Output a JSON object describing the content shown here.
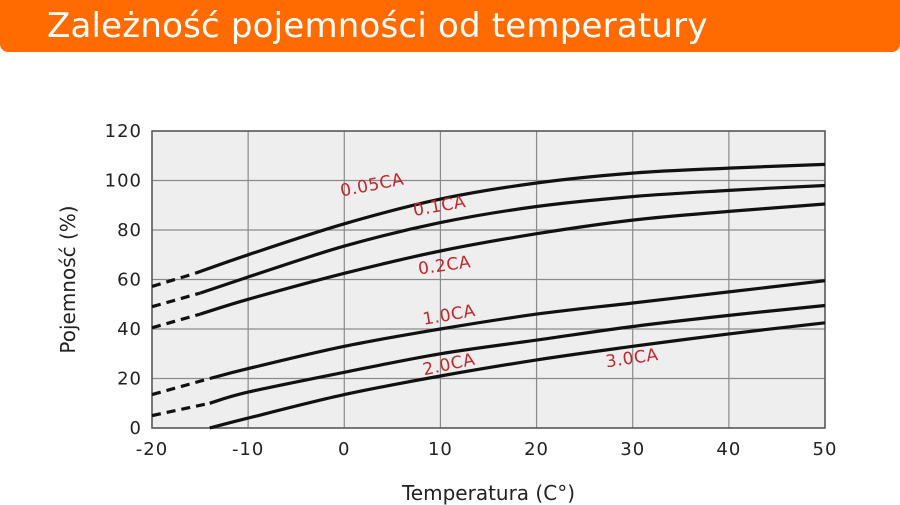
{
  "header": {
    "title": "Zależność pojemności od temperatury",
    "background_color": "#ff6b00"
  },
  "chart_data": {
    "type": "line",
    "xlabel": "Temperatura (C°)",
    "ylabel": "Pojemność (%)",
    "xlim": [
      -20,
      50
    ],
    "ylim": [
      0,
      120
    ],
    "xticks": [
      -20,
      -10,
      0,
      10,
      20,
      30,
      40,
      50
    ],
    "yticks": [
      0,
      20,
      40,
      60,
      80,
      100,
      120
    ],
    "grid": true,
    "plot_background": "#eeeeee",
    "line_color": "#111111",
    "label_color": "#c1272d",
    "series": [
      {
        "name": "0.05CA",
        "dashed_segment": [
          [
            -20,
            57.2
          ],
          [
            -15.5,
            62.5
          ]
        ],
        "x": [
          -15.5,
          -10,
          0,
          10,
          20,
          30,
          40,
          50
        ],
        "y": [
          62.5,
          70,
          82.5,
          92.5,
          99,
          103,
          105,
          106.5
        ]
      },
      {
        "name": "0.1CA",
        "dashed_segment": [
          [
            -20,
            49
          ],
          [
            -15,
            54.5
          ]
        ],
        "x": [
          -15,
          -10,
          0,
          10,
          20,
          30,
          40,
          50
        ],
        "y": [
          54.5,
          61,
          73.5,
          83,
          89.5,
          93.5,
          96,
          98
        ]
      },
      {
        "name": "0.2CA",
        "dashed_segment": [
          [
            -20,
            40.5
          ],
          [
            -15,
            46
          ]
        ],
        "x": [
          -15,
          -10,
          0,
          10,
          20,
          30,
          40,
          50
        ],
        "y": [
          46,
          52,
          62.5,
          71.5,
          78.5,
          84,
          87.5,
          90.5
        ]
      },
      {
        "name": "1.0CA",
        "dashed_segment": [
          [
            -20,
            13.5
          ],
          [
            -14,
            20
          ]
        ],
        "x": [
          -14,
          -10,
          0,
          10,
          20,
          30,
          40,
          50
        ],
        "y": [
          20,
          24,
          33,
          40,
          46,
          50.5,
          55,
          59.5
        ]
      },
      {
        "name": "2.0CA",
        "dashed_segment": [
          [
            -20,
            5
          ],
          [
            -14,
            10
          ]
        ],
        "x": [
          -14,
          -10,
          0,
          10,
          20,
          30,
          40,
          50
        ],
        "y": [
          10,
          14.5,
          22.5,
          30,
          35.5,
          41,
          45.5,
          49.5
        ]
      },
      {
        "name": "3.0CA",
        "dashed_segment": [],
        "x": [
          -14,
          -10,
          0,
          10,
          20,
          30,
          40,
          50
        ],
        "y": [
          0,
          4,
          13.5,
          21,
          27.5,
          33,
          38,
          42.5
        ]
      }
    ],
    "annotations": [
      {
        "text": "0.05CA",
        "x": 3,
        "y": 96,
        "angle": -11
      },
      {
        "text": "0.1CA",
        "x": 10,
        "y": 87.5,
        "angle": -10
      },
      {
        "text": "0.2CA",
        "x": 10.5,
        "y": 63.5,
        "angle": -8
      },
      {
        "text": "1.0CA",
        "x": 11,
        "y": 43.5,
        "angle": -10
      },
      {
        "text": "2.0CA",
        "x": 11,
        "y": 23.5,
        "angle": -12
      },
      {
        "text": "3.0CA",
        "x": 30,
        "y": 26,
        "angle": -8
      }
    ]
  }
}
